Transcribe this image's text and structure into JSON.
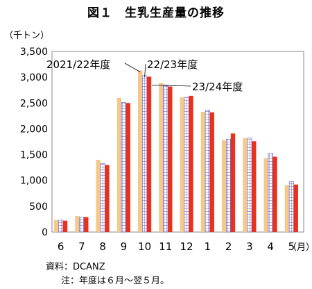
{
  "title": "図１　生乳生産量の推移",
  "notes": [
    "資料：DCANZ",
    "注：年度は６月～翌５月。"
  ],
  "chart_data": {
    "type": "bar",
    "ylabel": "（千トン）",
    "xlabel": "（月）",
    "categories": [
      "6",
      "7",
      "8",
      "9",
      "10",
      "11",
      "12",
      "1",
      "2",
      "3",
      "4",
      "5"
    ],
    "ylim": [
      0,
      3500
    ],
    "yticks": [
      "0",
      "500",
      "1,000",
      "1,500",
      "2,000",
      "2,500",
      "3,000",
      "3,500"
    ],
    "grid": false,
    "series": [
      {
        "name": "2021/22年度",
        "color": "#f5c98a",
        "values": [
          230,
          310,
          1400,
          2600,
          3130,
          2890,
          2610,
          2330,
          1780,
          1820,
          1430,
          910
        ]
      },
      {
        "name": "22/23年度",
        "color": "#b3b3e6",
        "values": [
          230,
          290,
          1330,
          2510,
          3030,
          2850,
          2610,
          2360,
          1800,
          1820,
          1530,
          980
        ]
      },
      {
        "name": "23/24年度",
        "color": "#e8321e",
        "values": [
          220,
          290,
          1300,
          2500,
          3010,
          2820,
          2640,
          2320,
          1910,
          1760,
          1460,
          920
        ]
      }
    ]
  }
}
